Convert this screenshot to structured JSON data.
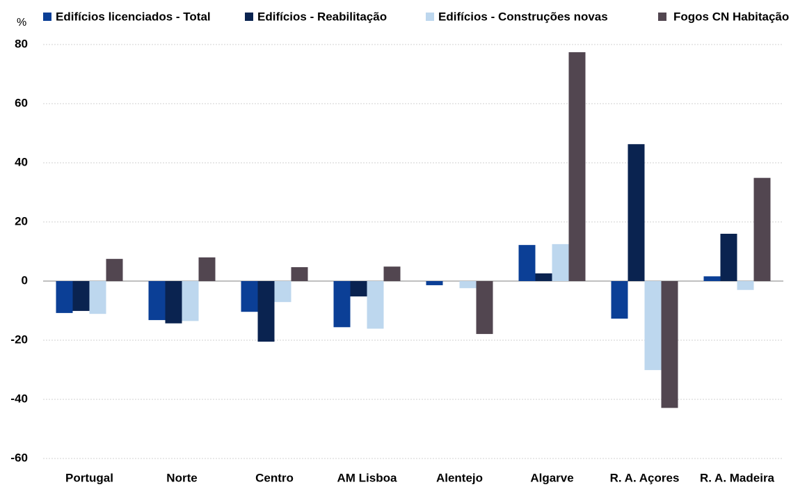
{
  "chart_data": {
    "type": "bar",
    "y_label": "%",
    "categories": [
      "Portugal",
      "Norte",
      "Centro",
      "AM Lisboa",
      "Alentejo",
      "Algarve",
      "R. A. Açores",
      "R. A. Madeira"
    ],
    "series": [
      {
        "name": "Edifícios licenciados - Total",
        "color": "#0b3f96",
        "values": [
          -10.8,
          -13.2,
          -10.4,
          -15.6,
          -1.4,
          12.2,
          -12.7,
          1.6
        ]
      },
      {
        "name": "Edifícios - Reabilitação",
        "color": "#0a2350",
        "values": [
          -10.1,
          -14.3,
          -20.5,
          -5.2,
          0,
          2.6,
          46.3,
          16.0
        ]
      },
      {
        "name": "Edifícios - Construções novas",
        "color": "#bdd7ee",
        "values": [
          -11.1,
          -13.5,
          -7.1,
          -16.1,
          -2.4,
          12.5,
          -30.1,
          -3.0
        ]
      },
      {
        "name": "Fogos CN Habitação",
        "color": "#524650",
        "values": [
          7.5,
          8.0,
          4.7,
          4.9,
          -17.9,
          77.4,
          -42.9,
          34.9
        ]
      }
    ],
    "ylim": [
      -60,
      80
    ],
    "yticks": [
      -60,
      -40,
      -20,
      0,
      20,
      40,
      60,
      80
    ],
    "grid": true
  }
}
